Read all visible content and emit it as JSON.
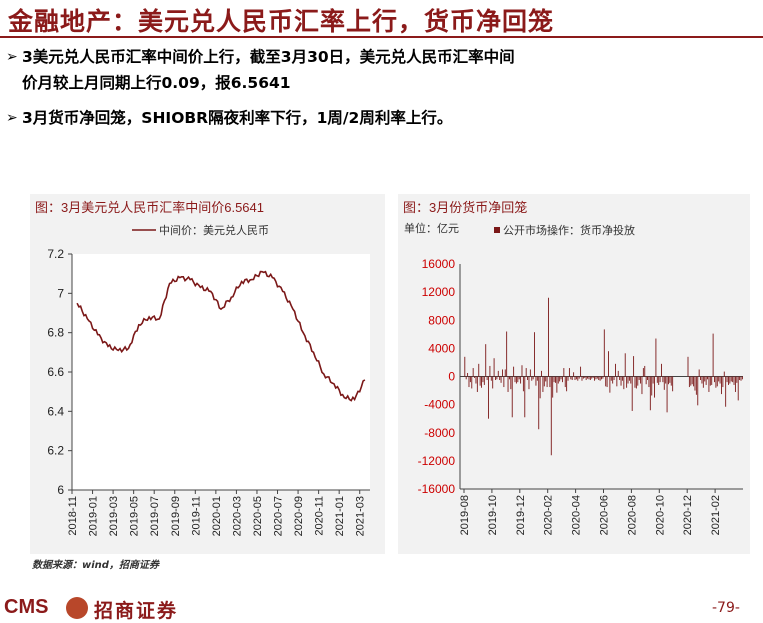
{
  "title": "金融地产：美元兑人民币汇率上行，货币净回笼",
  "bullets": [
    "3美元兑人民币汇率中间价上行，截至3月30日，美元兑人民币汇率中间价月较上月同期上行0.09，报6.5641",
    "3月货币净回笼，SHIOBR隔夜利率下行，1周/2周利率上行。"
  ],
  "bullet_lines": [
    [
      "3美元兑人民币汇率中间价上行，截至3月30日，美元兑人民币汇率中间",
      "价月较上月同期上行0.09，报6.5641"
    ],
    [
      "3月货币净回笼，SHIOBR隔夜利率下行，1周/2周利率上行。"
    ]
  ],
  "bullet_symbol": "➢",
  "source": "数据来源：wind，招商证券",
  "footer": {
    "logo_text": "CMS",
    "logo_cn": "招商证券",
    "page": "-79-"
  },
  "colors": {
    "accent": "#8b1a1a",
    "series": "#7b1818",
    "panel_bg": "#f2f2f2"
  },
  "chart_data": [
    {
      "type": "line",
      "title": "图：3月美元兑人民币汇率中间价6.5641",
      "legend": "中间价：美元兑人民币",
      "ylim": [
        6,
        7.2
      ],
      "yticks": [
        6,
        6.2,
        6.4,
        6.6,
        6.8,
        7,
        7.2
      ],
      "ytick_labels": [
        "6",
        "6.2",
        "6.4",
        "6.6",
        "6.8",
        "7",
        "7.2"
      ],
      "xticks": [
        "2018-11",
        "2019-01",
        "2019-03",
        "2019-05",
        "2019-07",
        "2019-09",
        "2019-11",
        "2020-01",
        "2020-03",
        "2020-05",
        "2020-07",
        "2020-09",
        "2020-11",
        "2021-01",
        "2021-03"
      ],
      "series": [
        {
          "name": "中间价：美元兑人民币",
          "x": [
            "2018-11",
            "2018-12",
            "2019-01",
            "2019-02",
            "2019-03",
            "2019-04",
            "2019-05",
            "2019-06",
            "2019-07",
            "2019-08",
            "2019-09",
            "2019-10",
            "2019-11",
            "2019-12",
            "2020-01",
            "2020-02",
            "2020-03",
            "2020-04",
            "2020-05",
            "2020-06",
            "2020-07",
            "2020-08",
            "2020-09",
            "2020-10",
            "2020-11",
            "2020-12",
            "2021-01",
            "2021-02",
            "2021-03"
          ],
          "values": [
            6.95,
            6.87,
            6.79,
            6.73,
            6.71,
            6.72,
            6.84,
            6.88,
            6.87,
            7.05,
            7.08,
            7.07,
            7.03,
            7.01,
            6.92,
            6.98,
            7.06,
            7.07,
            7.11,
            7.08,
            7.01,
            6.92,
            6.8,
            6.7,
            6.59,
            6.54,
            6.47,
            6.46,
            6.56
          ]
        }
      ]
    },
    {
      "type": "bar",
      "title": "图：3月份货币净回笼",
      "unit": "单位：亿元",
      "legend": "公开市场操作：货币净投放",
      "ylim": [
        -16000,
        16000
      ],
      "yticks": [
        -16000,
        -12000,
        -8000,
        -4000,
        0,
        4000,
        8000,
        12000,
        16000
      ],
      "ytick_labels": [
        "-16000",
        "-12000",
        "-8000",
        "-4000",
        "0",
        "4000",
        "8000",
        "12000",
        "16000"
      ],
      "xticks": [
        "2019-08",
        "2019-10",
        "2019-12",
        "2020-02",
        "2020-04",
        "2020-06",
        "2020-08",
        "2020-10",
        "2020-12",
        "2021-02"
      ],
      "categories": [
        "2019-08",
        "2019-09",
        "2019-10",
        "2019-11",
        "2019-12",
        "2020-01",
        "2020-02",
        "2020-03",
        "2020-04",
        "2020-05",
        "2020-06",
        "2020-07",
        "2020-08",
        "2020-09",
        "2020-10",
        "2020-12",
        "2021-01",
        "2021-02",
        "2021-03"
      ],
      "series": [
        {
          "name": "公开市场操作：货币净投放",
          "values": [
            [
              2800,
              -400,
              500,
              -1500,
              -800,
              -1700,
              1200,
              -200,
              -1000,
              -2200
            ],
            [
              1800,
              -1300,
              -1600,
              -800,
              -1200,
              4600,
              -500,
              -6000,
              1500,
              -600
            ],
            [
              -1700,
              2600,
              -500,
              -400,
              800,
              -500,
              -900,
              1000,
              -1500,
              1000
            ],
            [
              6400,
              -2200,
              -400,
              -1800,
              -5800,
              1400,
              -800,
              -1000,
              -800,
              -400
            ],
            [
              -1000,
              1600,
              -2100,
              -5800,
              1200,
              -500,
              -1800,
              1000,
              -600,
              -400
            ],
            [
              6300,
              -1300,
              -600,
              -7500,
              -3100,
              800,
              -2200,
              -1400,
              -700,
              -1500
            ],
            [
              11200,
              -1500,
              -11200,
              -3000,
              -800,
              -900,
              -2300,
              -1000,
              -700,
              -400
            ],
            [
              -800,
              1200,
              -1500,
              -2100,
              -600,
              1200,
              -400,
              -500,
              600,
              -500
            ],
            [
              -400,
              -600,
              -300,
              1400,
              -600,
              -300,
              -200,
              -500,
              -300,
              -400
            ],
            [
              -500,
              -300,
              -200,
              -600,
              -400,
              -300,
              -500,
              -600,
              -400,
              -300
            ],
            [
              6700,
              -1400,
              -1500,
              3600,
              -2300,
              -600,
              -1000,
              -500,
              1800,
              -1400
            ],
            [
              800,
              -500,
              -1300,
              -600,
              -1800,
              3300,
              -1600,
              -1000,
              -600,
              -1000
            ],
            [
              -4900,
              2900,
              -1600,
              -1700,
              -1300,
              -500,
              -1000,
              -2500,
              1200,
              1500
            ],
            [
              -1100,
              -500,
              -1500,
              -4800,
              -2700,
              -1000,
              -3000,
              5400,
              -900,
              -1200
            ],
            [
              -800,
              1800,
              -800,
              -1900,
              -1000,
              -5100,
              -1100,
              -900,
              -1300,
              -2100
            ],
            [
              2800,
              -1500,
              -1300,
              -1100,
              -1400,
              -2000,
              -2600,
              -4100,
              1000,
              -500
            ],
            [
              -1000,
              -1600,
              -700,
              -1200,
              -400,
              -2200,
              -1300,
              -1200,
              6100,
              -800
            ],
            [
              -1600,
              -1400,
              -700,
              -1000,
              -2500,
              -1500,
              700,
              -4300,
              -800,
              -1200
            ],
            [
              -1000,
              -700,
              -800,
              -1200,
              -2200,
              -900,
              -3400,
              -500,
              -600,
              -400
            ]
          ]
        }
      ]
    }
  ]
}
